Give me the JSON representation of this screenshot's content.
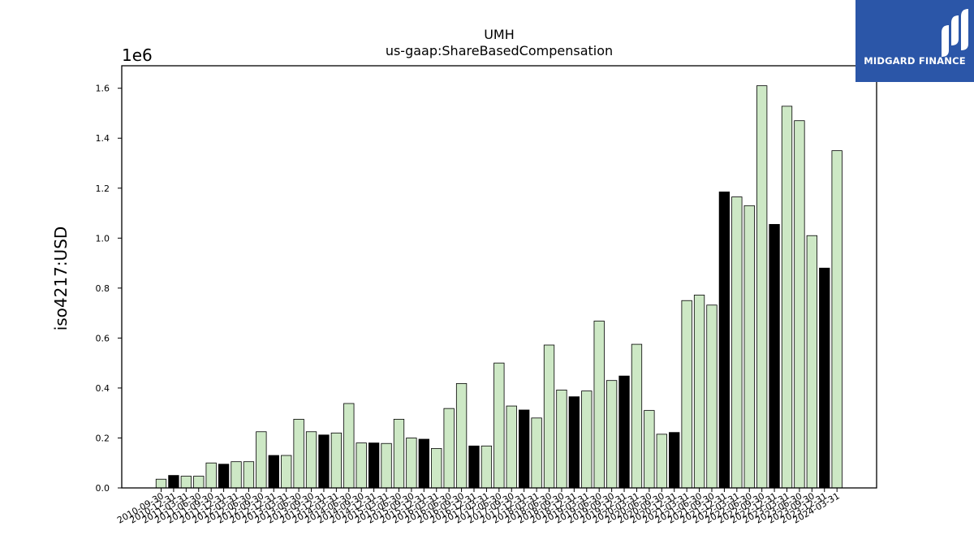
{
  "logo": {
    "text": "MIDGARD FINANCE",
    "bg_color": "#2b56a8"
  },
  "chart_data": {
    "type": "bar",
    "title": "UMH",
    "subtitle": "us-gaap:ShareBasedCompensation",
    "ylabel": "iso4217:USD",
    "xlabel": "",
    "y_offset_label": "1e6",
    "ylim": [
      0,
      1690000
    ],
    "yticks": [
      "0.0",
      "0.2",
      "0.4",
      "0.6",
      "0.8",
      "1.0",
      "1.2",
      "1.4",
      "1.6"
    ],
    "grid": false,
    "colors": {
      "light": "#cde8c5",
      "dark": "#000000",
      "edge": "#000000"
    },
    "categories": [
      "2010-09-30",
      "2010-12-31",
      "2011-03-31",
      "2011-06-30",
      "2011-09-30",
      "2011-12-31",
      "2012-03-31",
      "2012-06-30",
      "2012-09-30",
      "2012-12-31",
      "2013-03-31",
      "2013-06-30",
      "2013-09-30",
      "2013-12-31",
      "2014-03-31",
      "2014-06-30",
      "2014-09-30",
      "2014-12-31",
      "2015-03-31",
      "2015-06-30",
      "2015-09-30",
      "2015-12-31",
      "2016-03-31",
      "2016-06-30",
      "2016-09-30",
      "2016-12-31",
      "2017-03-31",
      "2017-06-30",
      "2017-09-30",
      "2017-12-31",
      "2018-03-31",
      "2018-06-30",
      "2018-09-30",
      "2018-12-31",
      "2019-03-31",
      "2019-06-30",
      "2019-09-30",
      "2019-12-31",
      "2020-03-31",
      "2020-06-30",
      "2020-09-30",
      "2020-12-31",
      "2021-03-31",
      "2021-06-30",
      "2021-09-30",
      "2021-12-31",
      "2022-03-31",
      "2022-06-30",
      "2022-09-30",
      "2022-12-31",
      "2023-03-31",
      "2023-06-30",
      "2023-09-30",
      "2023-12-31",
      "2024-03-31"
    ],
    "values": [
      35000,
      50000,
      47000,
      47000,
      100000,
      95000,
      105000,
      105000,
      225000,
      130000,
      130000,
      275000,
      225000,
      212000,
      220000,
      338000,
      180000,
      180000,
      178000,
      275000,
      200000,
      195000,
      158000,
      318000,
      418000,
      168000,
      168000,
      500000,
      328000,
      312000,
      280000,
      572000,
      392000,
      365000,
      388000,
      668000,
      430000,
      448000,
      575000,
      310000,
      215000,
      222000,
      750000,
      772000,
      732000,
      1185000,
      1165000,
      1130000,
      1610000,
      1055000,
      1528000,
      1470000,
      1010000,
      880000,
      1350000
    ],
    "dark_bars": [
      1,
      5,
      9,
      13,
      17,
      21,
      25,
      29,
      33,
      37,
      41,
      45,
      49,
      53
    ]
  }
}
